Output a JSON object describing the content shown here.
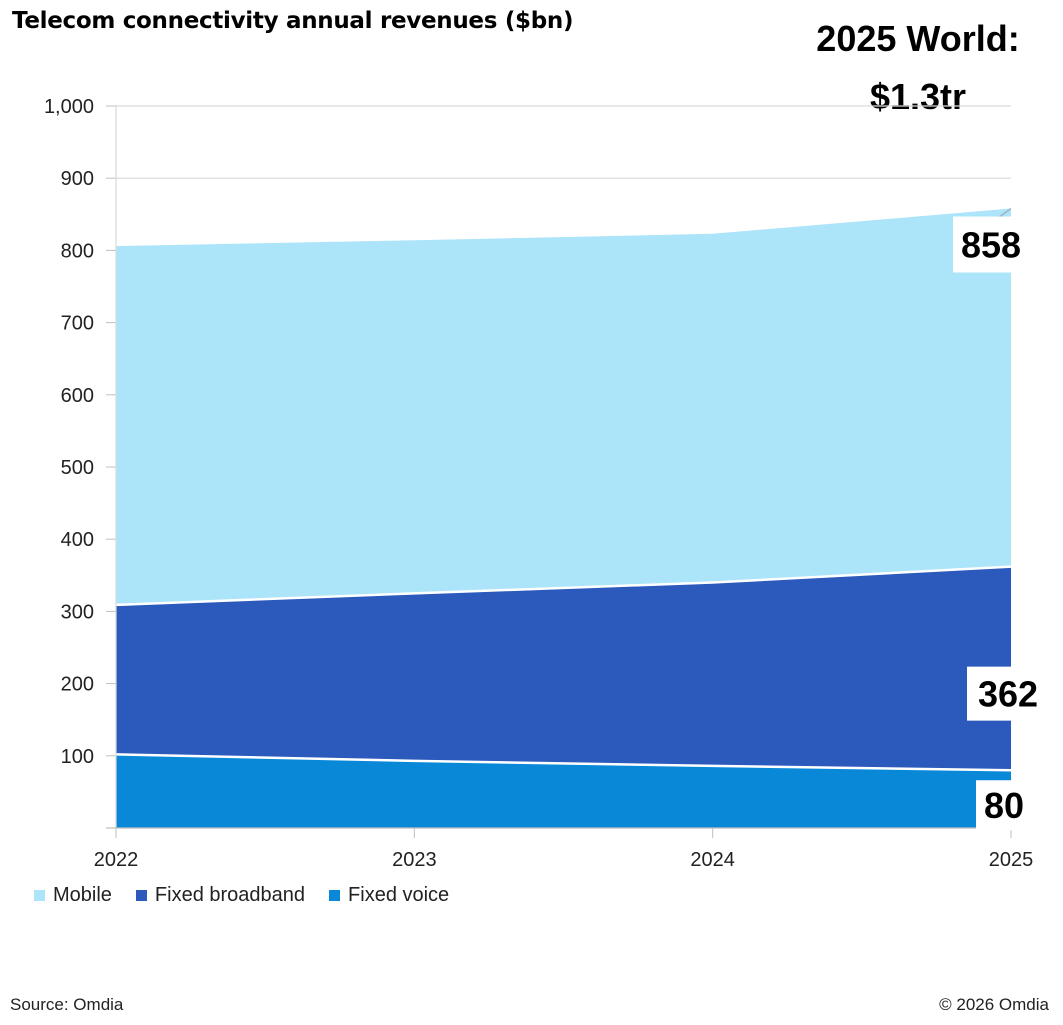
{
  "chart_data": {
    "type": "area",
    "stacked": true,
    "title": "Telecom connectivity annual revenues ($bn)",
    "x": [
      "2022",
      "2023",
      "2024",
      "2025"
    ],
    "ylim": [
      0,
      1000
    ],
    "yticks": [
      "1,000",
      "900",
      "800",
      "700",
      "600",
      "500",
      "400",
      "300",
      "200",
      "100"
    ],
    "grid": true,
    "legend_position": "bottom-left",
    "series": [
      {
        "name": "Fixed voice",
        "values": [
          102,
          93,
          86,
          80
        ],
        "color": "#0A88D8"
      },
      {
        "name": "Fixed broadband",
        "values": [
          207,
          232,
          254,
          282
        ],
        "color": "#2B59BC"
      },
      {
        "name": "Mobile",
        "values": [
          497,
          489,
          483,
          496
        ],
        "color": "#ACE4FA"
      }
    ],
    "data_labels": [
      "80",
      "362",
      "858"
    ]
  },
  "legend": [
    {
      "name": "Mobile",
      "color": "#ACE4FA"
    },
    {
      "name": "Fixed broadband",
      "color": "#2B59BC"
    },
    {
      "name": "Fixed voice",
      "color": "#0A88D8"
    }
  ],
  "callout": {
    "line1": "2025 World:",
    "line2": "$1.3tr"
  },
  "source": "Source: Omdia",
  "copyright": "© 2026 Omdia"
}
